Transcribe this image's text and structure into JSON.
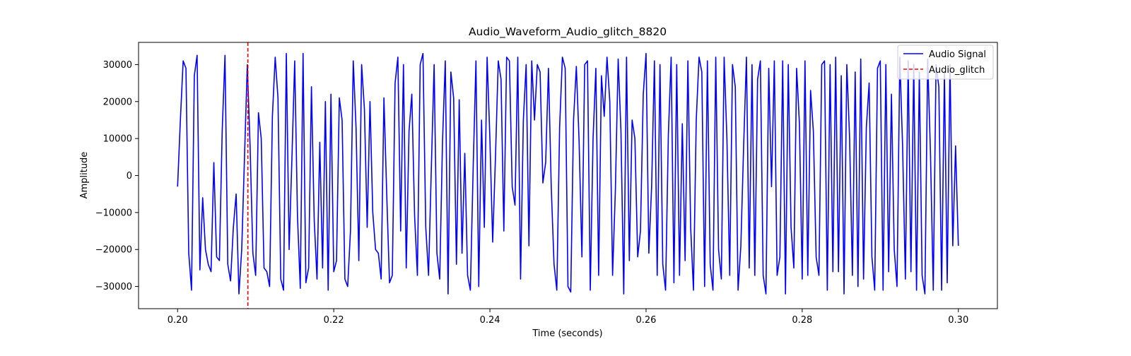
{
  "chart_data": {
    "type": "line",
    "title": "Audio_Waveform_Audio_glitch_8820",
    "xlabel": "Time (seconds)",
    "ylabel": "Amplitude",
    "xlim": [
      0.195,
      0.305
    ],
    "ylim": [
      -36000,
      36000
    ],
    "xticks": [
      0.2,
      0.22,
      0.24,
      0.26,
      0.28,
      0.3
    ],
    "xtick_labels": [
      "0.20",
      "0.22",
      "0.24",
      "0.26",
      "0.28",
      "0.30"
    ],
    "yticks": [
      -30000,
      -20000,
      -10000,
      0,
      10000,
      20000,
      30000
    ],
    "ytick_labels": [
      "−30000",
      "−20000",
      "−10000",
      "0",
      "10000",
      "20000",
      "30000"
    ],
    "grid": false,
    "legend_position": "top-right",
    "series": [
      {
        "name": "Audio Signal",
        "color": "#0000ff",
        "x_start": 0.2,
        "x_end": 0.3,
        "values": [
          -3000,
          15000,
          31000,
          29000,
          -21000,
          -31000,
          27000,
          32500,
          -25500,
          -6000,
          -20000,
          -24000,
          -26000,
          3500,
          -22000,
          -23000,
          12000,
          32500,
          -24000,
          -28500,
          -14000,
          -5000,
          -32000,
          -20000,
          5000,
          30000,
          8000,
          -21000,
          -27000,
          17000,
          10000,
          -25000,
          -26000,
          -30000,
          16000,
          32000,
          21000,
          -28000,
          -31000,
          33000,
          -20000,
          4500,
          31000,
          -11000,
          -30500,
          33000,
          -29000,
          -25000,
          24000,
          -12000,
          -28000,
          9000,
          -25000,
          20000,
          -31000,
          22000,
          -26000,
          -23000,
          21000,
          15000,
          -28000,
          -30000,
          -15000,
          31000,
          13000,
          -23000,
          30000,
          18000,
          -14000,
          20000,
          -10000,
          -20000,
          -21000,
          -28000,
          21000,
          -5000,
          -29000,
          -27000,
          25000,
          32000,
          -15000,
          30000,
          -25000,
          12000,
          22000,
          -11000,
          -27000,
          30000,
          33000,
          -14000,
          -27000,
          2000,
          30000,
          -21000,
          -28000,
          9000,
          31000,
          -32000,
          28000,
          21000,
          -24000,
          20500,
          -21000,
          6000,
          -27000,
          -31000,
          2000,
          31000,
          -30000,
          15000,
          -14000,
          32000,
          10000,
          -18000,
          5000,
          31000,
          26000,
          -15000,
          32000,
          31000,
          -3000,
          -8000,
          32000,
          -28000,
          15000,
          30000,
          -19000,
          31000,
          15000,
          30000,
          28000,
          -2000,
          3500,
          29000,
          -3000,
          -24000,
          -31000,
          13000,
          32000,
          29000,
          -30000,
          -31500,
          15000,
          29500,
          9000,
          -22000,
          30000,
          31000,
          -31000,
          10000,
          29000,
          -27000,
          27000,
          16000,
          32000,
          20000,
          -27000,
          -4000,
          31500,
          12000,
          -32000,
          32000,
          -23000,
          15000,
          10000,
          -22000,
          -15000,
          22000,
          33000,
          -21000,
          -3000,
          31000,
          -27000,
          30000,
          -24000,
          -31000,
          11000,
          32000,
          -29000,
          30000,
          -27000,
          14000,
          -23000,
          31000,
          -14000,
          -31000,
          15000,
          32000,
          28000,
          -30000,
          31000,
          -24000,
          -31000,
          32000,
          -20000,
          -28000,
          32000,
          10000,
          -27000,
          30000,
          24000,
          -31000,
          -19000,
          8000,
          32000,
          -25000,
          30000,
          -27000,
          26000,
          31000,
          -27000,
          -32000,
          29000,
          -3000,
          31000,
          -27000,
          -22000,
          31000,
          -32000,
          30000,
          -14000,
          -25000,
          29000,
          14000,
          -28000,
          31000,
          -27000,
          23000,
          12000,
          -22000,
          -27000,
          30000,
          31000,
          -31000,
          30000,
          -26000,
          32000,
          -26000,
          27000,
          -32000,
          30000,
          10000,
          -27000,
          28000,
          -30000,
          31500,
          -28000,
          13000,
          25000,
          -22000,
          -31000,
          29000,
          31000,
          -31000,
          30000,
          -26000,
          22000,
          -20000,
          -30000,
          32000,
          8000,
          -28000,
          31000,
          -26000,
          30000,
          -31000,
          28000,
          -27000,
          -32000,
          31500,
          6000,
          -31000,
          30000,
          24000,
          -31000,
          28000,
          -29000,
          30000,
          -19000,
          8000,
          -19000
        ]
      }
    ],
    "annotations": [
      {
        "type": "vline",
        "label": "Audio_glitch",
        "x": 0.209,
        "color": "#ff0000",
        "style": "dashed"
      }
    ]
  }
}
